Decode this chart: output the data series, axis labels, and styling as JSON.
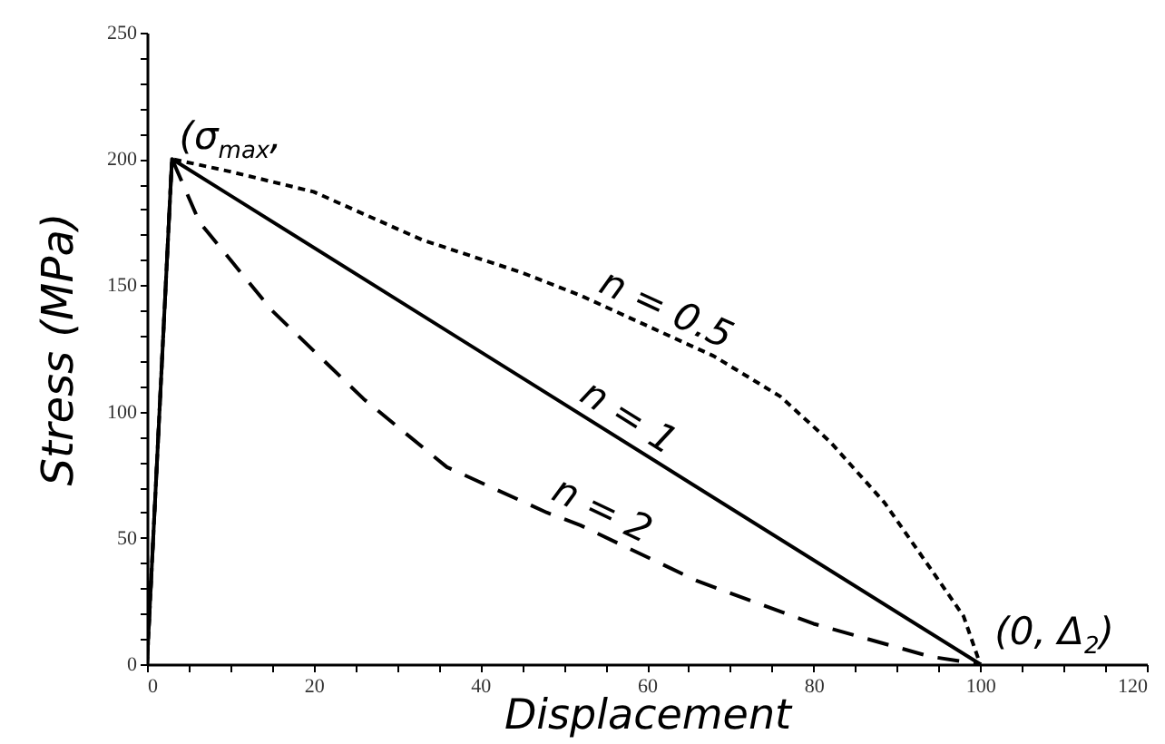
{
  "chart_data": {
    "type": "line",
    "xlabel": "Displacement",
    "ylabel": "Stress (MPa)",
    "xlim": [
      0,
      120
    ],
    "ylim": [
      0,
      250
    ],
    "xticks": [
      0,
      {
        "value": 5,
        "label": null
      },
      {
        "value": 10,
        "label": null
      },
      {
        "value": 15,
        "label": null
      },
      20,
      {
        "value": 25,
        "label": null
      },
      {
        "value": 30,
        "label": null
      },
      {
        "value": 35,
        "label": null
      },
      40,
      {
        "value": 45,
        "label": null
      },
      {
        "value": 50,
        "label": null
      },
      {
        "value": 55,
        "label": null
      },
      60,
      {
        "value": 65,
        "label": null
      },
      {
        "value": 70,
        "label": null
      },
      {
        "value": 75,
        "label": null
      },
      80,
      {
        "value": 85,
        "label": null
      },
      {
        "value": 90,
        "label": null
      },
      {
        "value": 95,
        "label": null
      },
      100,
      {
        "value": 105,
        "label": null
      },
      {
        "value": 110,
        "label": null
      },
      {
        "value": 115,
        "label": null
      },
      120
    ],
    "yticks": [
      0,
      {
        "value": 10,
        "label": null
      },
      {
        "value": 20,
        "label": null
      },
      {
        "value": 30,
        "label": null
      },
      {
        "value": 40,
        "label": null
      },
      50,
      {
        "value": 60,
        "label": null
      },
      {
        "value": 70,
        "label": null
      },
      {
        "value": 80,
        "label": null
      },
      {
        "value": 90,
        "label": null
      },
      100,
      {
        "value": 110,
        "label": null
      },
      {
        "value": 120,
        "label": null
      },
      {
        "value": 130,
        "label": null
      },
      {
        "value": 140,
        "label": null
      },
      150,
      {
        "value": 160,
        "label": null
      },
      {
        "value": 170,
        "label": null
      },
      {
        "value": 180,
        "label": null
      },
      {
        "value": 190,
        "label": null
      },
      200,
      {
        "value": 210,
        "label": null
      },
      {
        "value": 220,
        "label": null
      },
      {
        "value": 230,
        "label": null
      },
      {
        "value": 240,
        "label": null
      },
      250
    ],
    "grid": false,
    "series": [
      {
        "name": "n = 0.5",
        "color": "#000000",
        "line_style": "dotted",
        "x": [
          0,
          3,
          10,
          20,
          33,
          45,
          52,
          60,
          68,
          76,
          82,
          88.5,
          94,
          98,
          100
        ],
        "values": [
          0,
          200,
          195,
          187,
          168,
          155,
          146,
          134,
          122,
          106,
          88,
          64,
          38,
          19,
          0
        ]
      },
      {
        "name": "n = 1",
        "color": "#000000",
        "line_style": "solid",
        "x": [
          0,
          3,
          100
        ],
        "values": [
          0,
          200,
          0
        ]
      },
      {
        "name": "n = 2",
        "color": "#000000",
        "line_style": "dashed",
        "x": [
          0,
          3,
          6.3,
          15,
          26,
          36,
          48,
          52,
          66,
          80,
          94,
          100
        ],
        "values": [
          0,
          200,
          175,
          140,
          105,
          78,
          60,
          55,
          33,
          16,
          3,
          0
        ]
      }
    ],
    "annotations": [
      {
        "text": "(σ$_{max}$,",
        "x": 3,
        "y": 200
      },
      {
        "text": "(0, Δ$_{2}$)",
        "x": 100,
        "y": 0
      }
    ]
  }
}
